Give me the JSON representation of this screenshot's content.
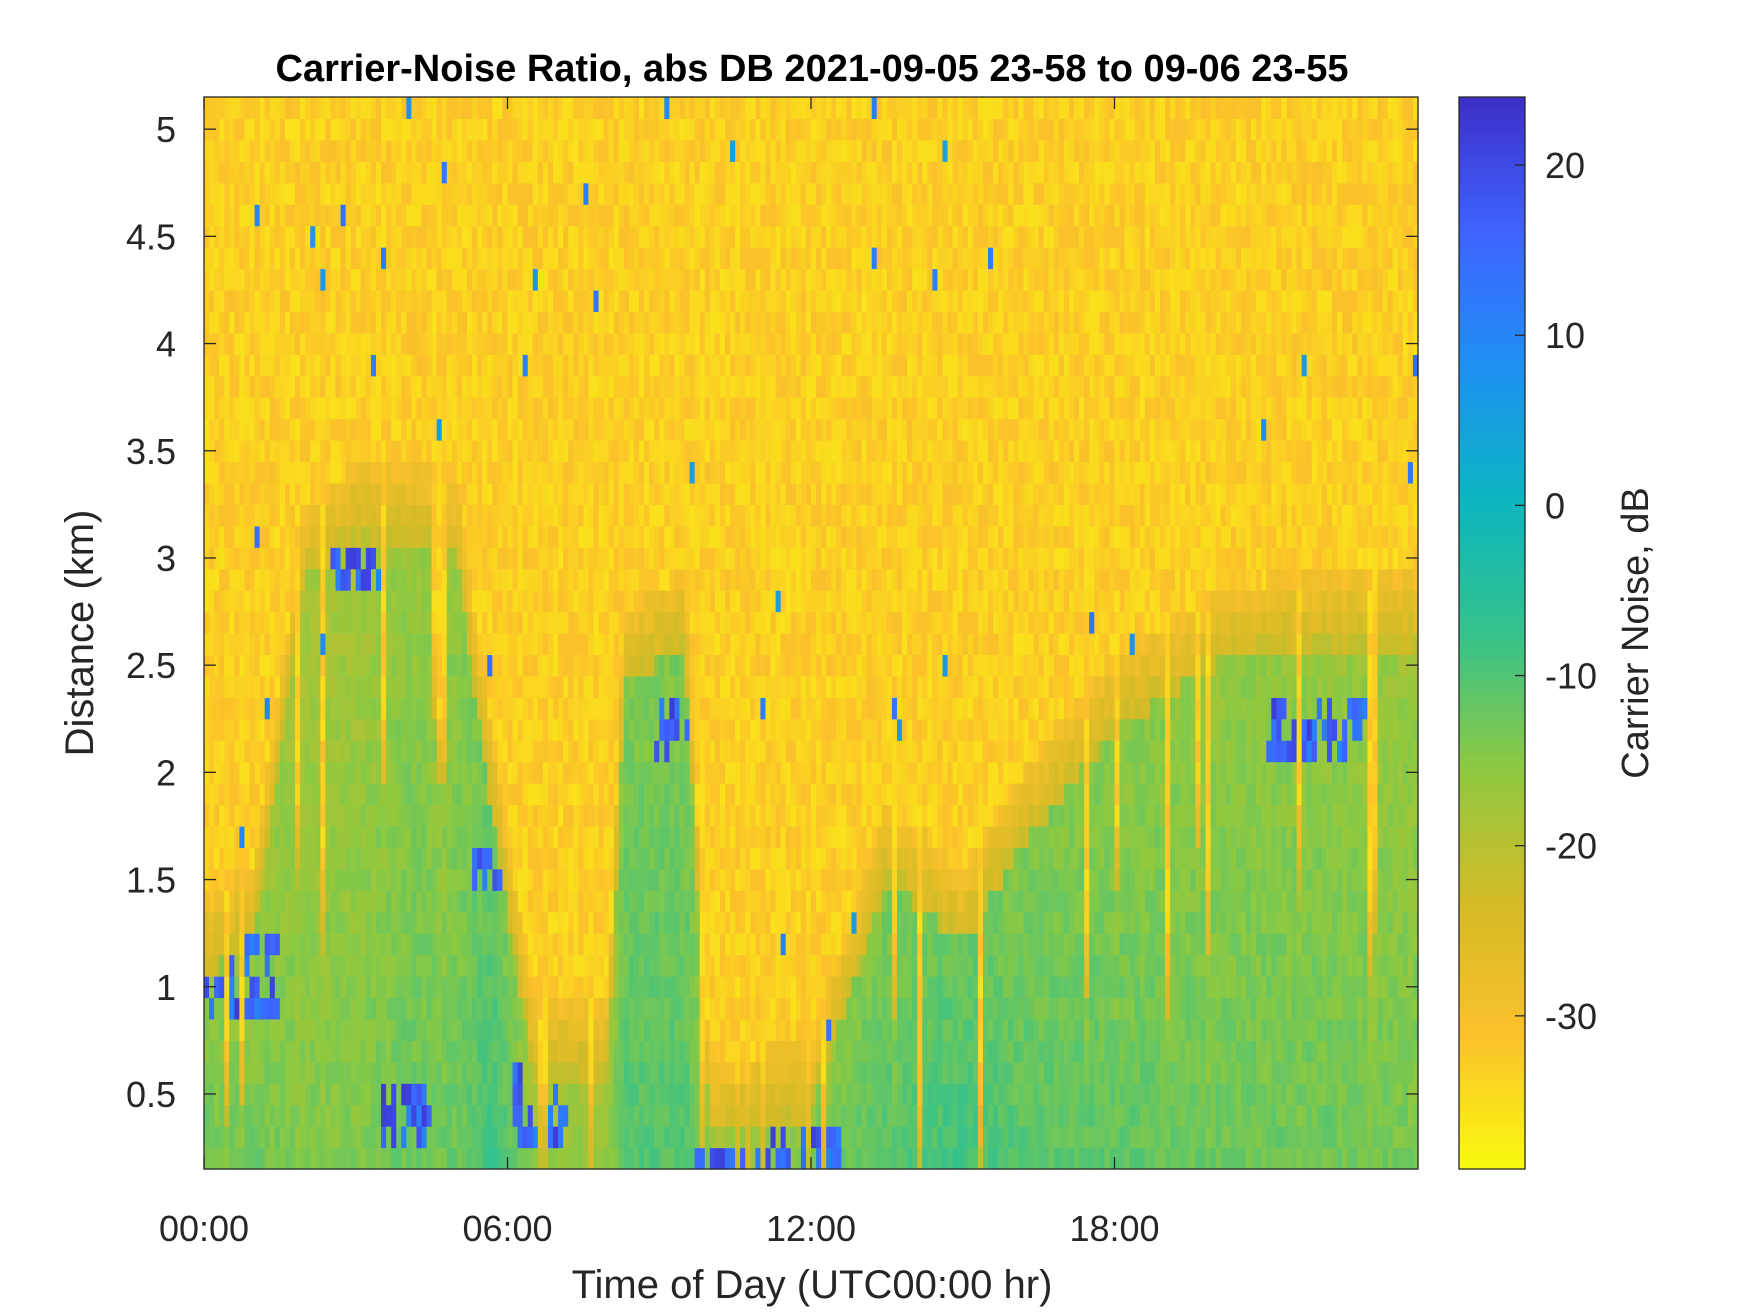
{
  "chart_data": {
    "type": "heatmap",
    "title": "Carrier-Noise Ratio, abs DB 2021-09-05 23-58 to 09-06 23-55",
    "xlabel": "Time of Day (UTC00:00 hr)",
    "ylabel": "Distance (km)",
    "colorbar_label": "Carrier Noise, dB",
    "x_ticks": [
      "00:00",
      "06:00",
      "12:00",
      "18:00"
    ],
    "x_tick_values": [
      0,
      6,
      12,
      18
    ],
    "xlim": [
      0,
      24
    ],
    "y_ticks": [
      "0.5",
      "1",
      "1.5",
      "2",
      "2.5",
      "3",
      "3.5",
      "4",
      "4.5",
      "5"
    ],
    "y_tick_values": [
      0.5,
      1,
      1.5,
      2,
      2.5,
      3,
      3.5,
      4,
      4.5,
      5
    ],
    "ylim": [
      0.15,
      5.15
    ],
    "colorbar_ticks": [
      "20",
      "10",
      "0",
      "-10",
      "-20",
      "-30"
    ],
    "colorbar_tick_values": [
      20,
      10,
      0,
      -10,
      -20,
      -30
    ],
    "clim": [
      -39,
      24
    ],
    "colormap": "parula-reversed",
    "colormap_stops": [
      "#f9fb0e",
      "#fbc12b",
      "#d4bb27",
      "#8ec940",
      "#35c28c",
      "#0bb6c0",
      "#1e90f2",
      "#3f63ff",
      "#3c2fc7"
    ],
    "grid": false,
    "colorbar_position": "right",
    "approx_time_profiles": [
      {
        "t": 0.0,
        "top_km": 1.05,
        "cn_low": -12,
        "strong_km": [
          0.85,
          1.05
        ]
      },
      {
        "t": 1.0,
        "top_km": 1.25,
        "cn_low": -12,
        "strong_km": [
          0.9,
          1.25
        ]
      },
      {
        "t": 2.0,
        "top_km": 2.9,
        "cn_low": -14
      },
      {
        "t": 3.0,
        "top_km": 3.1,
        "cn_low": -14,
        "strong_km": [
          2.85,
          3.15
        ]
      },
      {
        "t": 4.0,
        "top_km": 3.1,
        "cn_low": -12,
        "strong_km": [
          0.3,
          0.55
        ]
      },
      {
        "t": 5.0,
        "top_km": 3.0,
        "cn_low": -12
      },
      {
        "t": 5.7,
        "top_km": 1.8,
        "cn_low": -8,
        "strong_km": [
          1.45,
          1.65
        ]
      },
      {
        "t": 6.5,
        "top_km": 0.6,
        "cn_low": -14,
        "strong_km": [
          0.3,
          0.6
        ]
      },
      {
        "t": 8.0,
        "top_km": 0.6,
        "cn_low": -14
      },
      {
        "t": 8.3,
        "top_km": 2.4,
        "cn_low": -10
      },
      {
        "t": 9.5,
        "top_km": 2.6,
        "cn_low": -10,
        "strong_km": [
          2.05,
          2.3
        ]
      },
      {
        "t": 10.0,
        "top_km": 0.3,
        "cn_low": -14,
        "strong_km": [
          0.15,
          0.3
        ]
      },
      {
        "t": 12.0,
        "top_km": 0.4,
        "cn_low": -12,
        "strong_km": [
          0.15,
          0.35
        ]
      },
      {
        "t": 13.5,
        "top_km": 1.5,
        "cn_low": -10
      },
      {
        "t": 15.0,
        "top_km": 1.2,
        "cn_low": -8
      },
      {
        "t": 16.0,
        "top_km": 1.6,
        "cn_low": -10
      },
      {
        "t": 18.0,
        "top_km": 2.2,
        "cn_low": -11
      },
      {
        "t": 20.0,
        "top_km": 2.5,
        "cn_low": -12
      },
      {
        "t": 22.0,
        "top_km": 2.6,
        "cn_low": -12,
        "strong_km": [
          2.05,
          2.3
        ]
      },
      {
        "t": 24.0,
        "top_km": 2.6,
        "cn_low": -13
      }
    ]
  }
}
